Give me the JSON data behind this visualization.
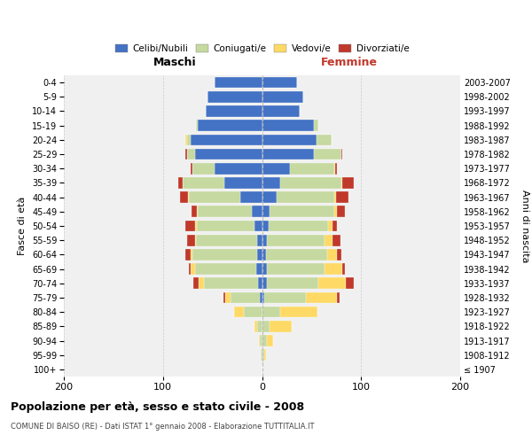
{
  "age_groups": [
    "100+",
    "95-99",
    "90-94",
    "85-89",
    "80-84",
    "75-79",
    "70-74",
    "65-69",
    "60-64",
    "55-59",
    "50-54",
    "45-49",
    "40-44",
    "35-39",
    "30-34",
    "25-29",
    "20-24",
    "15-19",
    "10-14",
    "5-9",
    "0-4"
  ],
  "birth_years": [
    "≤ 1907",
    "1908-1912",
    "1913-1917",
    "1918-1922",
    "1923-1927",
    "1928-1932",
    "1933-1937",
    "1938-1942",
    "1943-1947",
    "1948-1952",
    "1953-1957",
    "1958-1962",
    "1963-1967",
    "1968-1972",
    "1973-1977",
    "1978-1982",
    "1983-1987",
    "1988-1992",
    "1993-1997",
    "1998-2002",
    "2003-2007"
  ],
  "male_celibi": [
    0,
    0,
    0,
    0,
    0,
    2,
    4,
    6,
    5,
    5,
    8,
    10,
    22,
    38,
    48,
    68,
    72,
    65,
    57,
    55,
    48
  ],
  "male_coniugati": [
    0,
    1,
    2,
    5,
    18,
    30,
    55,
    62,
    65,
    62,
    58,
    55,
    52,
    42,
    22,
    8,
    4,
    2,
    0,
    0,
    0
  ],
  "male_vedovi": [
    0,
    0,
    1,
    3,
    10,
    5,
    5,
    4,
    2,
    1,
    2,
    1,
    1,
    0,
    0,
    0,
    1,
    0,
    0,
    0,
    0
  ],
  "male_divorziati": [
    0,
    0,
    0,
    0,
    0,
    2,
    5,
    2,
    5,
    8,
    9,
    5,
    8,
    5,
    2,
    1,
    0,
    0,
    0,
    0,
    0
  ],
  "female_nubili": [
    0,
    0,
    0,
    0,
    0,
    2,
    5,
    5,
    4,
    5,
    7,
    8,
    15,
    18,
    28,
    52,
    55,
    52,
    38,
    42,
    35
  ],
  "female_coniugate": [
    0,
    2,
    5,
    8,
    18,
    42,
    52,
    58,
    62,
    58,
    60,
    65,
    58,
    62,
    45,
    28,
    15,
    5,
    0,
    0,
    0
  ],
  "female_vedove": [
    0,
    2,
    6,
    22,
    38,
    32,
    28,
    18,
    10,
    8,
    4,
    3,
    2,
    1,
    1,
    0,
    0,
    0,
    0,
    0,
    0
  ],
  "female_divorziate": [
    0,
    0,
    0,
    0,
    0,
    2,
    8,
    3,
    4,
    8,
    5,
    8,
    12,
    12,
    2,
    1,
    0,
    0,
    0,
    0,
    0
  ],
  "colors": {
    "celibi_nubili": "#4472c4",
    "coniugati": "#c5d9a0",
    "vedovi": "#ffd966",
    "divorziati": "#c0392b"
  },
  "title": "Popolazione per età, sesso e stato civile - 2008",
  "subtitle": "COMUNE DI BAISO (RE) - Dati ISTAT 1° gennaio 2008 - Elaborazione TUTTITALIA.IT",
  "label_maschi": "Maschi",
  "label_femmine": "Femmine",
  "ylabel_left": "Fasce di età",
  "ylabel_right": "Anni di nascita",
  "xlim": 200,
  "legend_labels": [
    "Celibi/Nubili",
    "Coniugati/e",
    "Vedovi/e",
    "Divorziati/e"
  ],
  "bg_color": "#ffffff",
  "plot_bg": "#f0f0f0",
  "grid_color": "#cccccc"
}
